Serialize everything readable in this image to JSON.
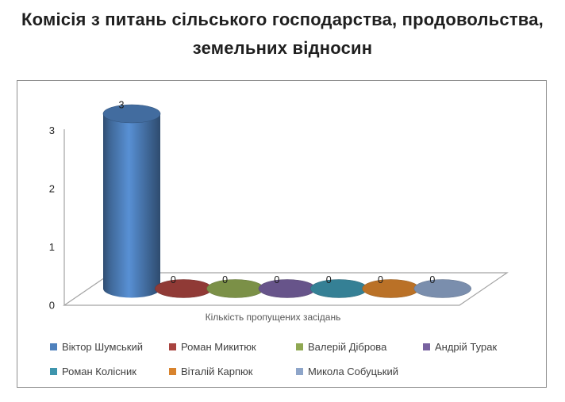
{
  "title": {
    "line1": "Комісія з питань сільського господарства, продовольства,",
    "line2": "земельних відносин"
  },
  "chart_data": {
    "type": "bar",
    "variant": "3d-cylinder",
    "title": "Комісія з питань сільського господарства, продовольства, земельних відносин",
    "xlabel": "Кількість пропущених засідань",
    "ylabel": "",
    "ylim": [
      0,
      3
    ],
    "yticks": [
      0,
      1,
      2,
      3
    ],
    "grid": false,
    "legend_position": "bottom",
    "data_labels_shown": true,
    "series": [
      {
        "name": "Віктор Шумський",
        "value": 3,
        "color": "#4F81BD"
      },
      {
        "name": "Роман Микитюк",
        "value": 0,
        "color": "#A8433F"
      },
      {
        "name": "Валерій Діброва",
        "value": 0,
        "color": "#8FA852"
      },
      {
        "name": "Андрій Турак",
        "value": 0,
        "color": "#7862A0"
      },
      {
        "name": "Роман Колісник",
        "value": 0,
        "color": "#3E95AD"
      },
      {
        "name": "Віталій Карпюк",
        "value": 0,
        "color": "#D8832D"
      },
      {
        "name": "Микола Собуцький",
        "value": 0,
        "color": "#8EA5C9"
      }
    ],
    "axis_color": "#a3a3a3",
    "tick_label_color": "#262626",
    "data_label_color": "#1a1a1a",
    "frame_border_color": "#8e8e8e"
  }
}
